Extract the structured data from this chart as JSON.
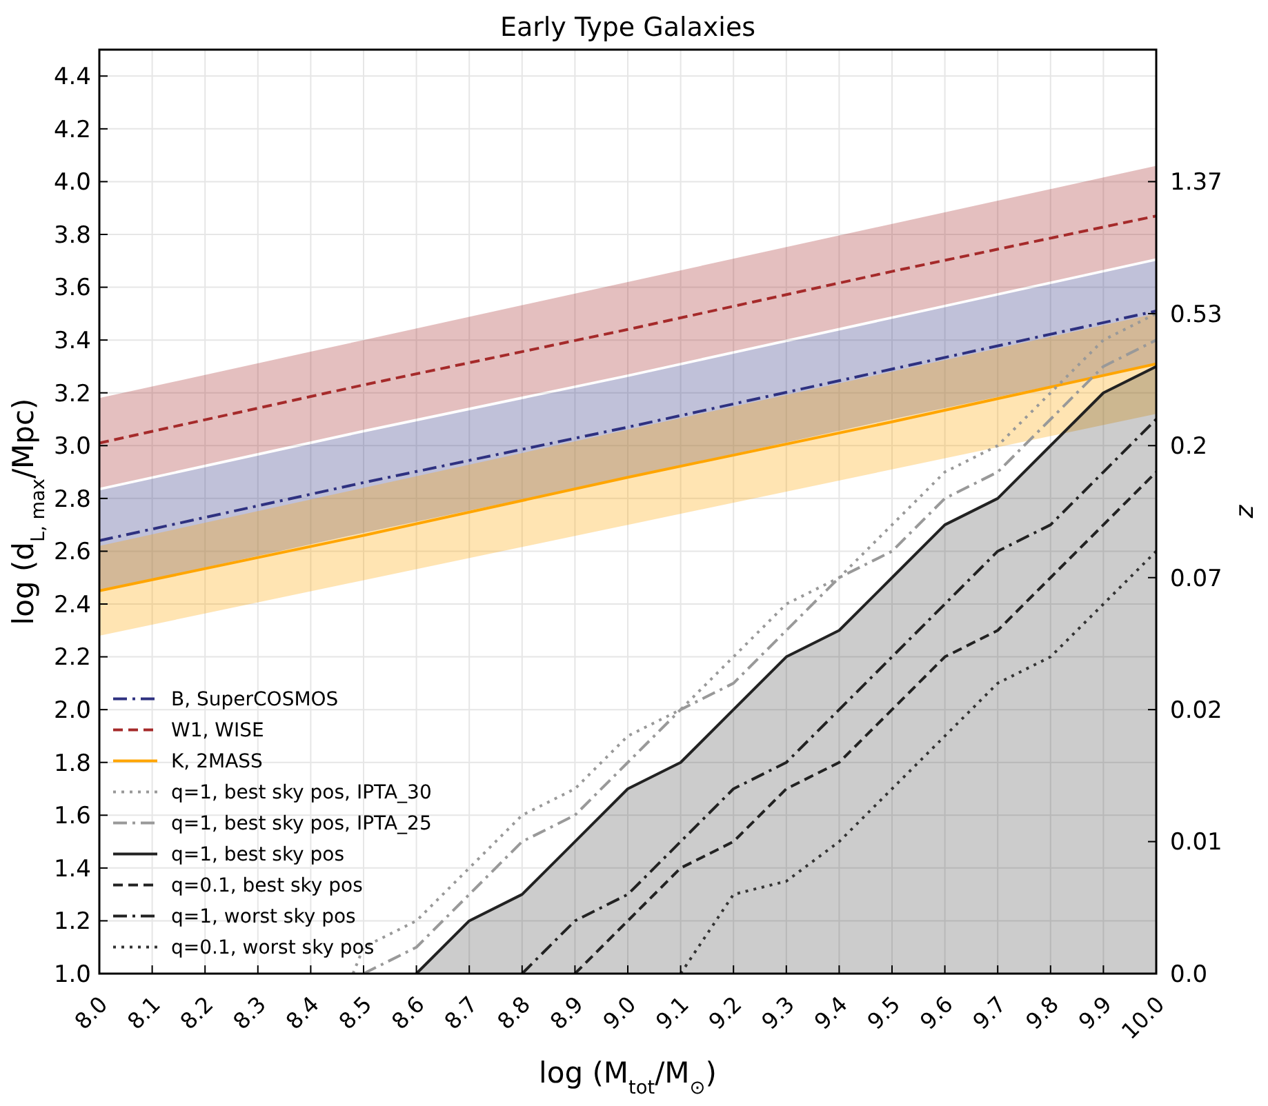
{
  "chart_data": {
    "type": "line",
    "title": "Early Type Galaxies",
    "xlabel": "log (M$_{tot}$/M$_{⊙}$)",
    "ylabel": "log (d$_{L, max}$/Mpc)",
    "y2label": "z",
    "xlim": [
      8.0,
      10.0
    ],
    "xticks": [
      {
        "value": 8.0,
        "label": "8.0"
      },
      {
        "value": 8.1,
        "label": "8.1"
      },
      {
        "value": 8.2,
        "label": "8.2"
      },
      {
        "value": 8.3,
        "label": "8.3"
      },
      {
        "value": 8.4,
        "label": "8.4"
      },
      {
        "value": 8.5,
        "label": "8.5"
      },
      {
        "value": 8.6,
        "label": "8.6"
      },
      {
        "value": 8.7,
        "label": "8.7"
      },
      {
        "value": 8.8,
        "label": "8.8"
      },
      {
        "value": 8.9,
        "label": "8.9"
      },
      {
        "value": 9.0,
        "label": "9.0"
      },
      {
        "value": 9.1,
        "label": "9.1"
      },
      {
        "value": 9.2,
        "label": "9.2"
      },
      {
        "value": 9.3,
        "label": "9.3"
      },
      {
        "value": 9.4,
        "label": "9.4"
      },
      {
        "value": 9.5,
        "label": "9.5"
      },
      {
        "value": 9.6,
        "label": "9.6"
      },
      {
        "value": 9.7,
        "label": "9.7"
      },
      {
        "value": 9.8,
        "label": "9.8"
      },
      {
        "value": 9.9,
        "label": "9.9"
      },
      {
        "value": 10.0,
        "label": "10.0"
      }
    ],
    "ylim": [
      1.0,
      4.5
    ],
    "yticks": [
      {
        "value": 1.0,
        "label": "1.0"
      },
      {
        "value": 1.2,
        "label": "1.2"
      },
      {
        "value": 1.4,
        "label": "1.4"
      },
      {
        "value": 1.6,
        "label": "1.6"
      },
      {
        "value": 1.8,
        "label": "1.8"
      },
      {
        "value": 2.0,
        "label": "2.0"
      },
      {
        "value": 2.2,
        "label": "2.2"
      },
      {
        "value": 2.4,
        "label": "2.4"
      },
      {
        "value": 2.6,
        "label": "2.6"
      },
      {
        "value": 2.8,
        "label": "2.8"
      },
      {
        "value": 3.0,
        "label": "3.0"
      },
      {
        "value": 3.2,
        "label": "3.2"
      },
      {
        "value": 3.4,
        "label": "3.4"
      },
      {
        "value": 3.6,
        "label": "3.6"
      },
      {
        "value": 3.8,
        "label": "3.8"
      },
      {
        "value": 4.0,
        "label": "4.0"
      },
      {
        "value": 4.2,
        "label": "4.2"
      },
      {
        "value": 4.4,
        "label": "4.4"
      }
    ],
    "y2_categories": [
      null,
      "1.37",
      "0.53",
      "0.2",
      "0.07",
      "0.02",
      "0.01",
      "0.0"
    ],
    "grid": true,
    "legend": "bottom left",
    "series": [
      {
        "name": "B, SuperCOSMOS",
        "type": "line",
        "color": "#2e3180",
        "line_style": "dashdot",
        "x": [
          8.0,
          8.5,
          9.0,
          9.5,
          10.0
        ],
        "values": [
          2.64,
          2.86,
          3.07,
          3.29,
          3.51
        ],
        "lower": [
          2.45,
          2.67,
          2.88,
          3.1,
          3.31
        ],
        "upper": [
          2.83,
          3.05,
          3.26,
          3.48,
          3.7
        ]
      },
      {
        "name": "W1, WISE",
        "type": "line",
        "color": "#a52a2a",
        "line_style": "dashed",
        "x": [
          8.0,
          8.5,
          9.0,
          9.5,
          10.0
        ],
        "values": [
          3.01,
          3.23,
          3.44,
          3.66,
          3.87
        ],
        "lower": [
          2.84,
          3.06,
          3.27,
          3.49,
          3.71
        ],
        "upper": [
          3.18,
          3.4,
          3.62,
          3.84,
          4.06
        ]
      },
      {
        "name": "K, 2MASS",
        "type": "line",
        "color": "#ffa500",
        "line_style": "solid",
        "x": [
          8.0,
          8.5,
          9.0,
          9.5,
          10.0
        ],
        "values": [
          2.45,
          2.66,
          2.88,
          3.09,
          3.31
        ],
        "lower": [
          2.28,
          2.49,
          2.7,
          2.91,
          3.12
        ],
        "upper": [
          2.62,
          2.84,
          3.06,
          3.28,
          3.5
        ]
      },
      {
        "name": "q=1, best sky pos, IPTA_30",
        "type": "line",
        "color": "#999999",
        "line_style": "dotted",
        "x": [
          8.48,
          8.5,
          8.6,
          8.7,
          8.8,
          8.9,
          9.0,
          9.1,
          9.2,
          9.3,
          9.4,
          9.5,
          9.6,
          9.7,
          9.8,
          9.9,
          10.0
        ],
        "values": [
          1.0,
          1.1,
          1.2,
          1.4,
          1.6,
          1.7,
          1.9,
          2.0,
          2.2,
          2.4,
          2.5,
          2.7,
          2.9,
          3.0,
          3.2,
          3.4,
          3.5
        ]
      },
      {
        "name": "q=1, best sky pos, IPTA_25",
        "type": "line",
        "color": "#999999",
        "line_style": "dashdot",
        "x": [
          8.5,
          8.6,
          8.7,
          8.8,
          8.9,
          9.0,
          9.1,
          9.2,
          9.3,
          9.4,
          9.5,
          9.6,
          9.7,
          9.8,
          9.9,
          10.0
        ],
        "values": [
          1.0,
          1.1,
          1.3,
          1.5,
          1.6,
          1.8,
          2.0,
          2.1,
          2.3,
          2.5,
          2.6,
          2.8,
          2.9,
          3.1,
          3.3,
          3.4
        ]
      },
      {
        "name": "q=1, best sky pos",
        "type": "area",
        "color": "#222222",
        "line_style": "solid",
        "x": [
          8.6,
          8.7,
          8.8,
          8.9,
          9.0,
          9.1,
          9.2,
          9.3,
          9.4,
          9.5,
          9.6,
          9.7,
          9.8,
          9.9,
          10.0
        ],
        "values": [
          1.0,
          1.2,
          1.3,
          1.5,
          1.7,
          1.8,
          2.0,
          2.2,
          2.3,
          2.5,
          2.7,
          2.8,
          3.0,
          3.2,
          3.3
        ]
      },
      {
        "name": "q=0.1, best sky pos",
        "type": "line",
        "color": "#222222",
        "line_style": "dashed",
        "x": [
          8.9,
          9.0,
          9.1,
          9.2,
          9.3,
          9.4,
          9.5,
          9.6,
          9.7,
          9.8,
          9.9,
          10.0
        ],
        "values": [
          1.0,
          1.2,
          1.4,
          1.5,
          1.7,
          1.8,
          2.0,
          2.2,
          2.3,
          2.5,
          2.7,
          2.9
        ]
      },
      {
        "name": "q=1, worst sky pos",
        "type": "line",
        "color": "#222222",
        "line_style": "dashdot",
        "x": [
          8.8,
          8.9,
          9.0,
          9.1,
          9.2,
          9.3,
          9.4,
          9.5,
          9.6,
          9.7,
          9.8,
          9.9,
          10.0
        ],
        "values": [
          1.0,
          1.2,
          1.3,
          1.5,
          1.7,
          1.8,
          2.0,
          2.2,
          2.4,
          2.6,
          2.7,
          2.9,
          3.1
        ]
      },
      {
        "name": "q=0.1, worst sky pos",
        "type": "line",
        "color": "#333333",
        "line_style": "dotted",
        "x": [
          9.1,
          9.2,
          9.3,
          9.4,
          9.5,
          9.6,
          9.7,
          9.8,
          9.9,
          10.0
        ],
        "values": [
          1.0,
          1.3,
          1.35,
          1.5,
          1.7,
          1.9,
          2.1,
          2.2,
          2.4,
          2.6
        ]
      }
    ]
  }
}
